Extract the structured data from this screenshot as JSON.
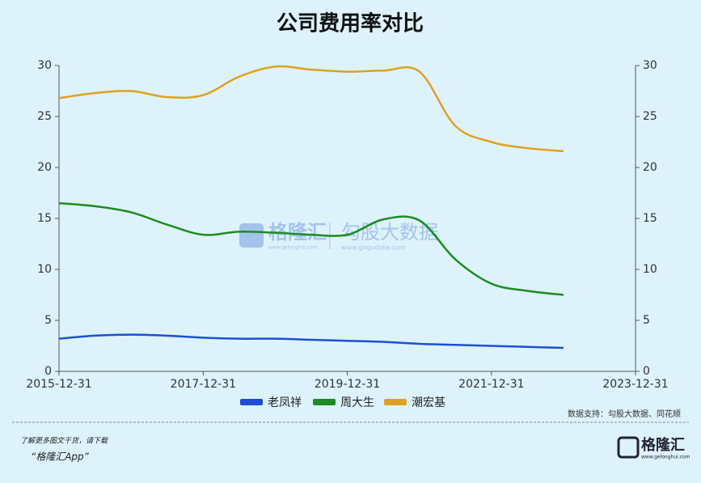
{
  "chart_data": {
    "type": "line",
    "title": "公司费用率对比",
    "x": [
      "2015-12-31",
      "2016-06-30",
      "2016-12-31",
      "2017-06-30",
      "2017-12-31",
      "2018-06-30",
      "2018-12-31",
      "2019-06-30",
      "2019-12-31",
      "2020-06-30",
      "2020-12-31",
      "2021-06-30",
      "2021-12-31",
      "2022-06-30",
      "2022-12-31"
    ],
    "series": [
      {
        "name": "老凤祥",
        "color": "#1d4fd6",
        "values": [
          3.2,
          3.5,
          3.6,
          3.5,
          3.3,
          3.2,
          3.2,
          3.1,
          3.0,
          2.9,
          2.7,
          2.6,
          2.5,
          2.4,
          2.3
        ]
      },
      {
        "name": "周大生",
        "color": "#1e8a22",
        "values": [
          16.5,
          16.2,
          15.6,
          14.4,
          13.4,
          13.7,
          13.6,
          13.4,
          13.4,
          14.9,
          14.8,
          11.0,
          8.6,
          7.9,
          7.5
        ]
      },
      {
        "name": "潮宏基",
        "color": "#e0a024",
        "values": [
          26.8,
          27.3,
          27.5,
          26.9,
          27.1,
          28.9,
          29.9,
          29.6,
          29.4,
          29.5,
          29.4,
          24.1,
          22.5,
          21.9,
          21.6
        ]
      }
    ],
    "xlim": [
      "2015-12-31",
      "2023-12-31"
    ],
    "xticks": [
      "2015-12-31",
      "2017-12-31",
      "2019-12-31",
      "2021-12-31",
      "2023-12-31"
    ],
    "ylim": [
      0,
      30
    ],
    "yticks": [
      0,
      5,
      10,
      15,
      20,
      25,
      30
    ],
    "y2lim": [
      0,
      30
    ],
    "y2ticks": [
      0,
      5,
      10,
      15,
      20,
      25,
      30
    ],
    "source": "数据支持：勾股大数据、同花顺"
  },
  "watermark": {
    "brand": "格隆汇",
    "brand_url": "www.gelonghui.com",
    "product": "勾股大数据",
    "product_url": "www.gogudata.com"
  },
  "footer": {
    "prompt": "了解更多图文干货，请下载",
    "app": "“格隆汇App”",
    "logo": "格隆汇",
    "logo_url": "www.gelonghui.com"
  }
}
